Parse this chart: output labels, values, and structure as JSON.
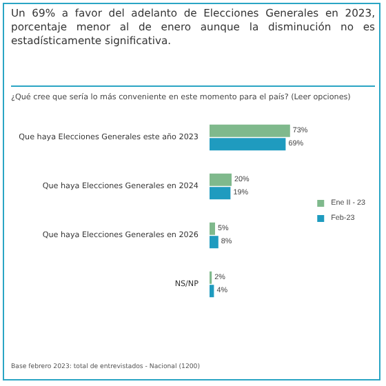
{
  "chart_data": {
    "type": "bar",
    "orientation": "horizontal",
    "title": "Un 69% a favor del adelanto de Elecciones Generales en 2023, porcentaje menor al de enero aunque la disminución no es estadísticamente significativa.",
    "subtitle": "¿Qué cree que sería lo más conveniente en este momento para el país? (Leer opciones)",
    "categories": [
      "Que haya Elecciones Generales este año 2023",
      "Que haya Elecciones Generales en 2024",
      "Que haya Elecciones Generales en 2026",
      "NS/NP"
    ],
    "series": [
      {
        "name": "Ene II - 23",
        "color": "#7fb98c",
        "values": [
          73,
          20,
          5,
          2
        ],
        "value_labels": [
          "73%",
          "20%",
          "5%",
          "2%"
        ]
      },
      {
        "name": "Feb-23",
        "color": "#1f9bbf",
        "values": [
          69,
          19,
          8,
          4
        ],
        "value_labels": [
          "69%",
          "19%",
          "8%",
          "4%"
        ]
      }
    ],
    "legend": "right",
    "tick_labels": "y",
    "annotations": [
      "Base febrero 2023: total de entrevistados - Nacional (1200)"
    ]
  }
}
